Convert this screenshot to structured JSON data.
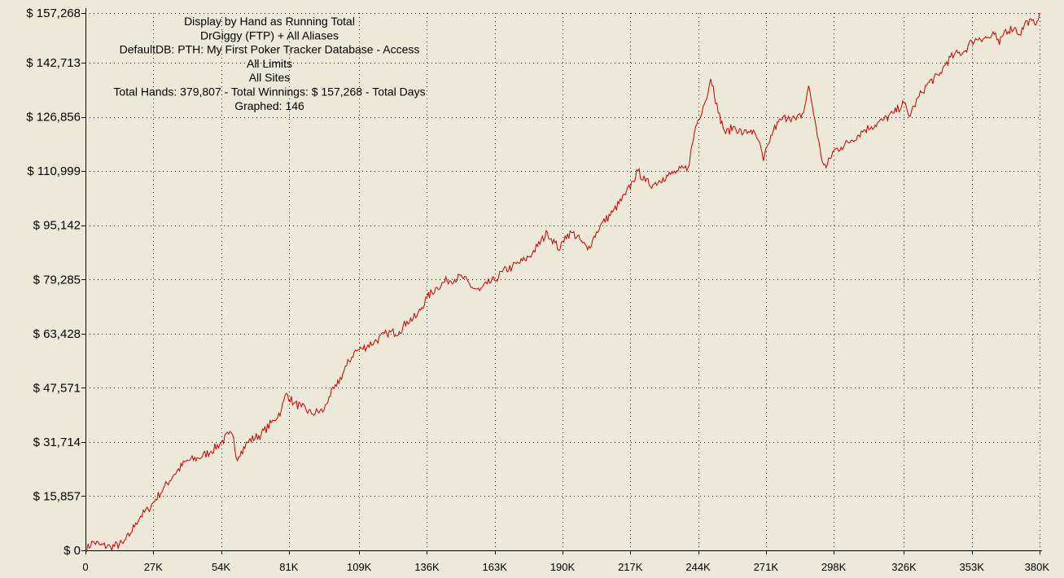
{
  "chart_data": {
    "type": "line",
    "info_lines": [
      "Display by Hand as Running Total",
      "DrGiggy (FTP) + All Aliases",
      "DefaultDB: PTH: My First Poker Tracker Database - Access",
      "All Limits",
      "All Sites",
      "Total Hands: 379,807 - Total Winnings: $ 157,268 - Total Days",
      "Graphed: 146"
    ],
    "y_ticks": [
      0,
      15857,
      31714,
      47571,
      63428,
      79285,
      95142,
      110999,
      126856,
      142713,
      157268
    ],
    "y_tick_labels": [
      "$ 0",
      "$ 15,857",
      "$ 31,714",
      "$ 47,571",
      "$ 63,428",
      "$ 79,285",
      "$ 95,142",
      "$ 110,999",
      "$ 126,856",
      "$ 142,713",
      "$ 157,268"
    ],
    "x_ticks": [
      0,
      27000,
      54000,
      81000,
      109000,
      136000,
      163000,
      190000,
      217000,
      244000,
      271000,
      298000,
      326000,
      353000,
      380000
    ],
    "x_tick_labels": [
      "0",
      "27K",
      "54K",
      "81K",
      "109K",
      "136K",
      "163K",
      "190K",
      "217K",
      "244K",
      "271K",
      "298K",
      "326K",
      "353K",
      "380K"
    ],
    "xlim": [
      0,
      380000
    ],
    "ylim": [
      0,
      157268
    ],
    "grid": true,
    "grid_style": "dotted",
    "series": [
      {
        "color": "#cc0000",
        "x": [
          0,
          3000,
          6000,
          10000,
          15000,
          18000,
          20000,
          22000,
          25000,
          28000,
          31000,
          35000,
          40000,
          45000,
          50000,
          54000,
          57000,
          59000,
          60000,
          62000,
          65000,
          70000,
          75000,
          78000,
          80000,
          83000,
          86000,
          90000,
          95000,
          97000,
          100000,
          104000,
          107000,
          110000,
          115000,
          120000,
          125000,
          128000,
          132000,
          136000,
          140000,
          144000,
          150000,
          154000,
          157000,
          160000,
          163000,
          166000,
          170000,
          175000,
          178000,
          180000,
          184000,
          187000,
          189000,
          191000,
          194000,
          198000,
          200000,
          202000,
          205000,
          210000,
          215000,
          218000,
          220000,
          223000,
          226000,
          230000,
          233000,
          236000,
          240000,
          243000,
          246000,
          248000,
          249000,
          250000,
          252000,
          255000,
          258000,
          262000,
          265000,
          268000,
          270000,
          272000,
          274000,
          277000,
          280000,
          283000,
          286000,
          288000,
          289000,
          291000,
          293000,
          295000,
          298000,
          301000,
          305000,
          310000,
          313000,
          318000,
          322000,
          326000,
          328000,
          330000,
          333000,
          336000,
          340000,
          343000,
          346000,
          350000,
          353000,
          356000,
          360000,
          362000,
          364000,
          366000,
          370000,
          372000,
          375000,
          378000,
          380000
        ],
        "values": [
          0,
          2500,
          1500,
          1000,
          2000,
          5000,
          8000,
          10000,
          12000,
          15000,
          18000,
          22000,
          26000,
          27000,
          29000,
          31500,
          34000,
          33000,
          27000,
          29000,
          32000,
          34000,
          38000,
          41000,
          46000,
          43000,
          42000,
          40000,
          41000,
          45000,
          48000,
          54000,
          58000,
          59000,
          61000,
          63500,
          64000,
          67000,
          68500,
          74000,
          77000,
          79000,
          80000,
          77000,
          76000,
          78000,
          79000,
          81500,
          83000,
          85000,
          87000,
          89000,
          93000,
          90000,
          88000,
          92000,
          93000,
          90000,
          88000,
          91000,
          95000,
          99000,
          104000,
          108000,
          111000,
          108000,
          107000,
          109000,
          110000,
          111000,
          112000,
          124000,
          130000,
          134000,
          138000,
          136000,
          128000,
          122000,
          124000,
          122000,
          123000,
          120000,
          114000,
          119000,
          123000,
          126000,
          127000,
          126000,
          128000,
          136000,
          132000,
          124000,
          115000,
          112000,
          117000,
          118000,
          120000,
          123000,
          124000,
          126000,
          128000,
          131000,
          127000,
          130000,
          134000,
          137000,
          139000,
          143000,
          145000,
          146000,
          149000,
          150000,
          150000,
          151000,
          148000,
          152000,
          153000,
          151000,
          155000,
          154000,
          157268
        ]
      }
    ]
  }
}
